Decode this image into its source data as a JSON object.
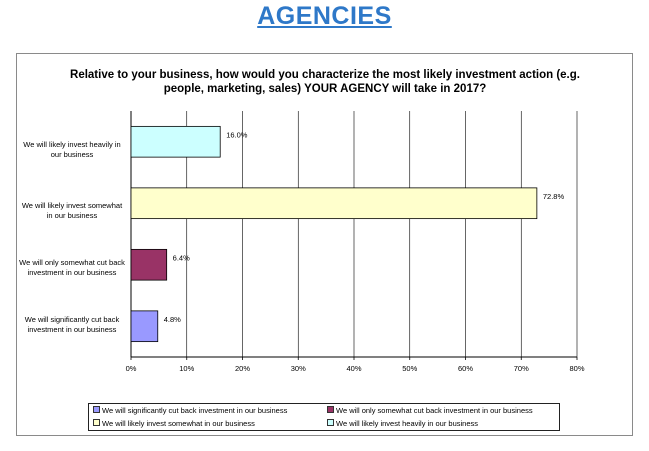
{
  "page": {
    "heading": "AGENCIES"
  },
  "chart_data": {
    "type": "bar",
    "orientation": "horizontal",
    "title": "Relative to your business, how would you characterize the most likely investment action (e.g. people, marketing, sales) YOUR AGENCY will take in 2017?",
    "categories": [
      "We will likely invest heavily in our business",
      "We will likely invest somewhat in our business",
      "We will only somewhat cut back investment in our business",
      "We will significantly cut back investment in our business"
    ],
    "values": [
      16.0,
      72.8,
      6.4,
      4.8
    ],
    "value_labels": [
      "16.0%",
      "72.8%",
      "6.4%",
      "4.8%"
    ],
    "colors": [
      "#ccffff",
      "#ffffcc",
      "#993366",
      "#9999ff"
    ],
    "xlim": [
      0,
      80
    ],
    "xticks": [
      0,
      10,
      20,
      30,
      40,
      50,
      60,
      70,
      80
    ],
    "xtick_labels": [
      "0%",
      "10%",
      "20%",
      "30%",
      "40%",
      "50%",
      "60%",
      "70%",
      "80%"
    ],
    "grid": true,
    "legend": {
      "position": "bottom",
      "items": [
        {
          "label": "We will significantly cut back investment in our business",
          "color": "#9999ff"
        },
        {
          "label": "We will only somewhat cut back investment in our business",
          "color": "#993366"
        },
        {
          "label": "We will likely invest somewhat in our business",
          "color": "#ffffcc"
        },
        {
          "label": "We will likely invest heavily in our business",
          "color": "#ccffff"
        }
      ]
    }
  }
}
